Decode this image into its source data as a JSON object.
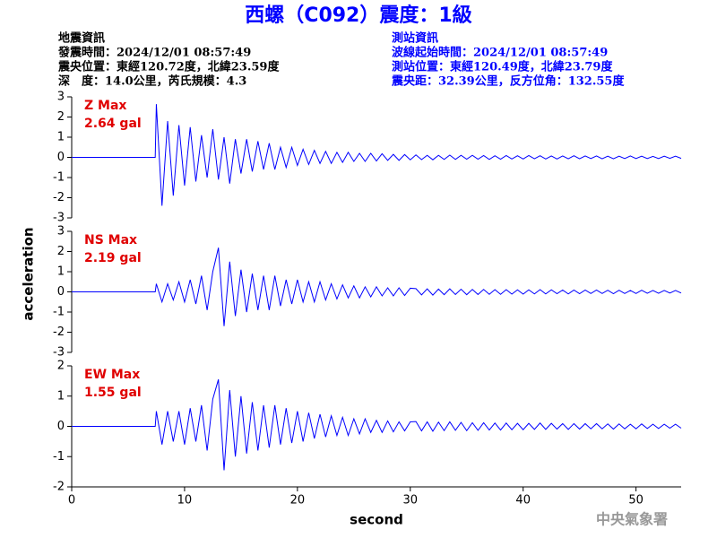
{
  "title": "西螺（C092）震度：1級",
  "event_info": [
    "地震資訊",
    "發震時間：2024/12/01 08:57:49",
    "震央位置：東經120.72度，北緯23.59度",
    "深　度：14.0公里，芮氏規模：4.3"
  ],
  "station_info": [
    "測站資訊",
    "波線起始時間：2024/12/01 08:57:49",
    "測站位置：東經120.49度，北緯23.79度",
    "震央距：32.39公里，反方位角：132.55度"
  ],
  "credit": "中央氣象署",
  "chart_data": [
    {
      "type": "line",
      "label": "Z Max",
      "max_label": "2.64 gal",
      "color": "#0000ff",
      "xlim": [
        0,
        54
      ],
      "ylim": [
        -3,
        3
      ],
      "yticks": [
        -3,
        -2,
        -1,
        0,
        1,
        2,
        3
      ],
      "x": [
        0,
        7.4,
        7.5,
        8,
        8.5,
        9,
        9.5,
        10,
        10.5,
        11,
        11.5,
        12,
        12.5,
        13,
        13.5,
        14,
        14.5,
        15,
        15.5,
        16,
        16.5,
        17,
        17.5,
        18,
        18.5,
        19,
        19.5,
        20,
        20.5,
        21,
        21.5,
        22,
        22.5,
        23,
        23.5,
        24,
        24.5,
        25,
        25.5,
        26,
        26.5,
        27,
        27.5,
        28,
        28.5,
        29,
        29.5,
        30,
        30.5,
        31,
        31.5,
        32,
        32.5,
        33,
        33.5,
        34,
        34.5,
        35,
        35.5,
        36,
        36.5,
        37,
        37.5,
        38,
        38.5,
        39,
        39.5,
        40,
        40.5,
        41,
        41.5,
        42,
        42.5,
        43,
        43.5,
        44,
        44.5,
        45,
        45.5,
        46,
        46.5,
        47,
        47.5,
        48,
        48.5,
        49,
        49.5,
        50,
        50.5,
        51,
        51.5,
        52,
        52.5,
        53,
        53.5,
        54
      ],
      "values": [
        0,
        0,
        2.64,
        -2.4,
        1.8,
        -1.9,
        1.6,
        -1.4,
        1.5,
        -1.2,
        1.1,
        -1.0,
        1.4,
        -1.1,
        1.0,
        -1.3,
        0.9,
        -0.8,
        0.9,
        -0.7,
        0.8,
        -0.6,
        0.7,
        -0.6,
        0.5,
        -0.5,
        0.5,
        -0.4,
        0.4,
        -0.35,
        0.35,
        -0.3,
        0.3,
        -0.3,
        0.25,
        -0.25,
        0.25,
        -0.2,
        0.2,
        -0.2,
        0.2,
        -0.18,
        0.18,
        -0.15,
        0.15,
        -0.15,
        0.14,
        -0.12,
        0.12,
        -0.11,
        0.1,
        -0.12,
        0.1,
        -0.1,
        0.11,
        -0.1,
        0.1,
        -0.09,
        0.1,
        -0.09,
        0.09,
        -0.1,
        0.08,
        -0.09,
        0.09,
        -0.08,
        0.08,
        -0.08,
        0.09,
        -0.07,
        0.08,
        -0.08,
        0.07,
        -0.08,
        0.07,
        -0.07,
        0.08,
        -0.07,
        0.07,
        -0.06,
        0.07,
        -0.07,
        0.06,
        -0.07,
        0.06,
        -0.06,
        0.07,
        -0.06,
        0.06,
        -0.06,
        0.05,
        -0.06,
        0.06,
        -0.05,
        0.06,
        -0.05
      ]
    },
    {
      "type": "line",
      "label": "NS Max",
      "max_label": "2.19 gal",
      "color": "#0000ff",
      "y_label": "acceleration",
      "xlim": [
        0,
        54
      ],
      "ylim": [
        -3,
        3
      ],
      "yticks": [
        -3,
        -2,
        -1,
        0,
        1,
        2,
        3
      ],
      "x": [
        0,
        7.4,
        7.5,
        8,
        8.5,
        9,
        9.5,
        10,
        10.5,
        11,
        11.5,
        12,
        12.5,
        13,
        13.5,
        14,
        14.5,
        15,
        15.5,
        16,
        16.5,
        17,
        17.5,
        18,
        18.5,
        19,
        19.5,
        20,
        20.5,
        21,
        21.5,
        22,
        22.5,
        23,
        23.5,
        24,
        24.5,
        25,
        25.5,
        26,
        26.5,
        27,
        27.5,
        28,
        28.5,
        29,
        29.5,
        30,
        30.5,
        31,
        31.5,
        32,
        32.5,
        33,
        33.5,
        34,
        34.5,
        35,
        35.5,
        36,
        36.5,
        37,
        37.5,
        38,
        38.5,
        39,
        39.5,
        40,
        40.5,
        41,
        41.5,
        42,
        42.5,
        43,
        43.5,
        44,
        44.5,
        45,
        45.5,
        46,
        46.5,
        47,
        47.5,
        48,
        48.5,
        49,
        49.5,
        50,
        50.5,
        51,
        51.5,
        52,
        52.5,
        53,
        53.5,
        54
      ],
      "values": [
        0,
        0,
        0.4,
        -0.5,
        0.4,
        -0.4,
        0.5,
        -0.5,
        0.6,
        -0.6,
        0.8,
        -0.9,
        1.0,
        2.19,
        -1.7,
        1.5,
        -1.2,
        1.1,
        -1.0,
        0.9,
        -0.9,
        0.8,
        -0.9,
        0.8,
        -0.7,
        0.6,
        -0.6,
        0.6,
        -0.5,
        0.5,
        -0.5,
        0.5,
        -0.4,
        0.4,
        -0.35,
        0.35,
        -0.3,
        0.3,
        -0.3,
        0.25,
        -0.25,
        0.25,
        -0.2,
        0.2,
        -0.2,
        0.2,
        -0.18,
        0.18,
        0.16,
        -0.15,
        0.15,
        -0.16,
        0.14,
        -0.14,
        0.15,
        -0.13,
        0.13,
        -0.14,
        0.12,
        -0.13,
        0.12,
        -0.12,
        0.11,
        -0.12,
        0.11,
        -0.11,
        0.1,
        -0.11,
        0.1,
        -0.1,
        0.11,
        -0.1,
        0.1,
        -0.09,
        0.09,
        -0.1,
        0.09,
        -0.09,
        0.09,
        -0.08,
        0.09,
        -0.08,
        0.08,
        -0.09,
        0.08,
        -0.08,
        0.07,
        -0.08,
        0.08,
        -0.07,
        0.07,
        -0.07,
        0.07,
        -0.06,
        0.07,
        -0.06
      ]
    },
    {
      "type": "line",
      "label": "EW Max",
      "max_label": "1.55 gal",
      "color": "#0000ff",
      "x_label": "second",
      "xlim": [
        0,
        54
      ],
      "xticks": [
        0,
        10,
        20,
        30,
        40,
        50
      ],
      "ylim": [
        -2,
        2
      ],
      "yticks": [
        -2,
        -1,
        0,
        1,
        2
      ],
      "x": [
        0,
        7.4,
        7.5,
        8,
        8.5,
        9,
        9.5,
        10,
        10.5,
        11,
        11.5,
        12,
        12.5,
        13,
        13.5,
        14,
        14.5,
        15,
        15.5,
        16,
        16.5,
        17,
        17.5,
        18,
        18.5,
        19,
        19.5,
        20,
        20.5,
        21,
        21.5,
        22,
        22.5,
        23,
        23.5,
        24,
        24.5,
        25,
        25.5,
        26,
        26.5,
        27,
        27.5,
        28,
        28.5,
        29,
        29.5,
        30,
        30.5,
        31,
        31.5,
        32,
        32.5,
        33,
        33.5,
        34,
        34.5,
        35,
        35.5,
        36,
        36.5,
        37,
        37.5,
        38,
        38.5,
        39,
        39.5,
        40,
        40.5,
        41,
        41.5,
        42,
        42.5,
        43,
        43.5,
        44,
        44.5,
        45,
        45.5,
        46,
        46.5,
        47,
        47.5,
        48,
        48.5,
        49,
        49.5,
        50,
        50.5,
        51,
        51.5,
        52,
        52.5,
        53,
        53.5,
        54
      ],
      "values": [
        0,
        0,
        0.5,
        -0.6,
        0.5,
        -0.5,
        0.5,
        -0.6,
        0.6,
        -0.5,
        0.7,
        -0.8,
        0.9,
        1.55,
        -1.45,
        1.2,
        -1.0,
        1.0,
        -0.9,
        0.8,
        -0.8,
        0.7,
        -0.7,
        0.7,
        -0.6,
        0.6,
        -0.55,
        0.5,
        -0.5,
        0.45,
        -0.4,
        0.4,
        -0.35,
        0.35,
        -0.3,
        0.3,
        -0.3,
        0.25,
        -0.25,
        0.25,
        -0.2,
        0.2,
        -0.2,
        0.18,
        -0.18,
        0.15,
        -0.15,
        0.15,
        0.16,
        -0.15,
        0.15,
        -0.16,
        0.14,
        -0.14,
        0.15,
        -0.13,
        0.13,
        -0.14,
        0.12,
        -0.13,
        0.12,
        -0.12,
        0.11,
        -0.12,
        0.11,
        -0.11,
        0.1,
        -0.11,
        0.1,
        -0.1,
        0.11,
        -0.1,
        0.1,
        -0.09,
        0.09,
        -0.1,
        0.09,
        -0.09,
        0.09,
        -0.08,
        0.09,
        -0.08,
        0.08,
        -0.09,
        0.08,
        -0.08,
        0.07,
        -0.08,
        0.08,
        -0.07,
        0.07,
        -0.07,
        0.07,
        -0.06,
        0.07,
        -0.06
      ]
    }
  ]
}
